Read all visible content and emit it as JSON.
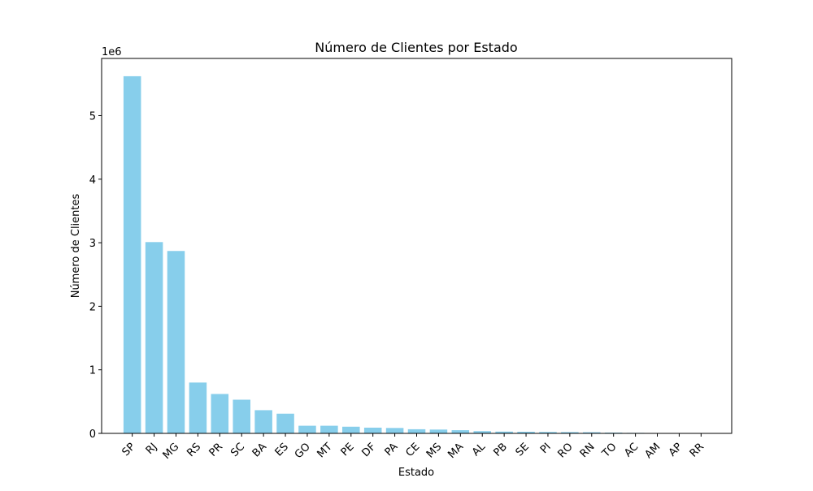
{
  "chart_data": {
    "type": "bar",
    "title": "Número de Clientes por Estado",
    "xlabel": "Estado",
    "ylabel": "Número de Clientes",
    "y_offset_label": "1e6",
    "y_scale_factor": 1000000,
    "ylim": [
      0,
      5900000
    ],
    "yticks": [
      0,
      1,
      2,
      3,
      4,
      5
    ],
    "grid": false,
    "bar_color": "#87CEEB",
    "categories": [
      "SP",
      "RJ",
      "MG",
      "RS",
      "PR",
      "SC",
      "BA",
      "ES",
      "GO",
      "MT",
      "PE",
      "DF",
      "PA",
      "CE",
      "MS",
      "MA",
      "AL",
      "PB",
      "SE",
      "PI",
      "RO",
      "RN",
      "TO",
      "AC",
      "AM",
      "AP",
      "RR"
    ],
    "values": [
      5620000,
      3010000,
      2870000,
      800000,
      620000,
      530000,
      365000,
      310000,
      120000,
      120000,
      105000,
      90000,
      85000,
      65000,
      60000,
      50000,
      35000,
      28000,
      25000,
      22000,
      20000,
      18000,
      12000,
      8000,
      5000,
      3000,
      2000
    ]
  }
}
